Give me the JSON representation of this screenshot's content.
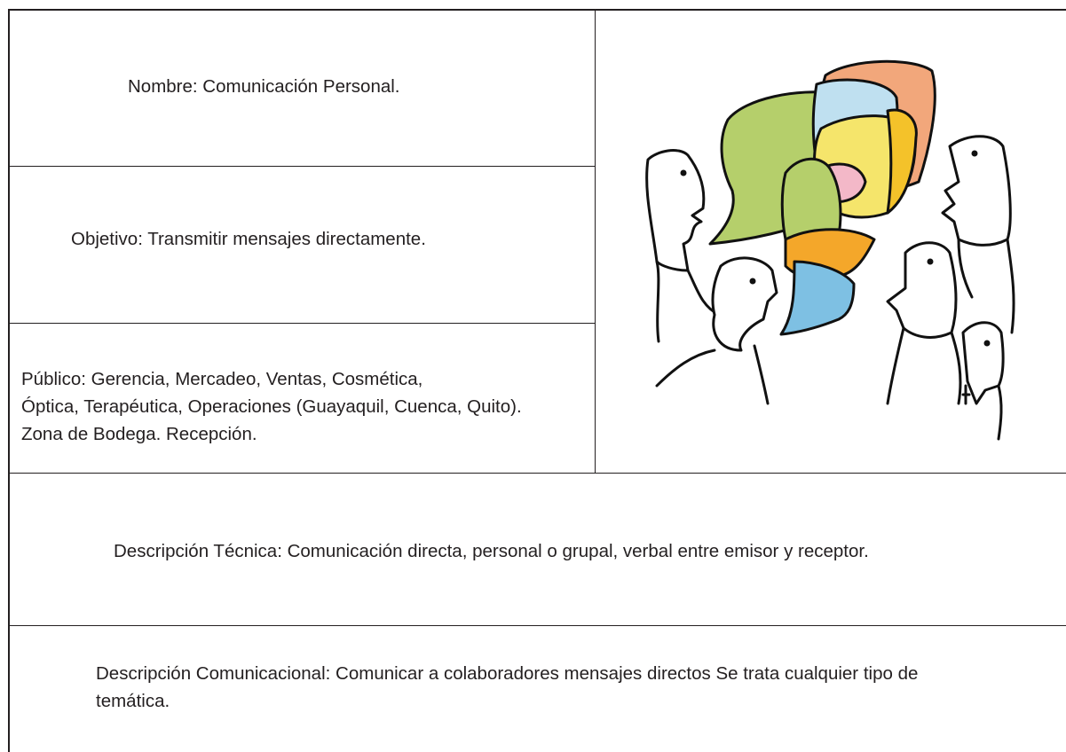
{
  "cells": {
    "nombre": "Nombre:  Comunicación Personal.",
    "objetivo": "Objetivo: Transmitir mensajes directamente.",
    "publico": [
      "Público: Gerencia, Mercadeo, Ventas, Cosmética,",
      "Óptica, Terapéutica, Operaciones (Guayaquil, Cuenca, Quito).",
      "Zona de Bodega. Recepción."
    ],
    "descripcion_tecnica": "Descripción Técnica: Comunicación directa, personal o grupal, verbal entre emisor y receptor.",
    "descripcion_comunicacional": "Descripción Comunicacional: Comunicar a colaboradores mensajes directos Se trata cualquier tipo de temática."
  }
}
